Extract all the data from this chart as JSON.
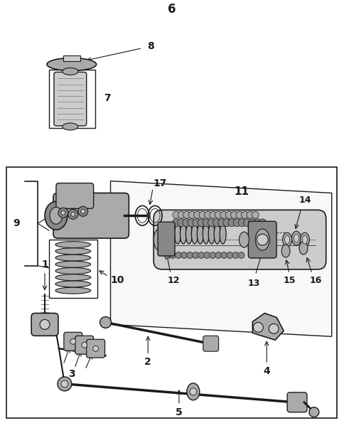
{
  "bg_color": "#ffffff",
  "line_color": "#1a1a1a",
  "gray1": "#888888",
  "gray2": "#aaaaaa",
  "gray3": "#cccccc",
  "gray4": "#dddddd",
  "fig_width": 4.85,
  "fig_height": 6.09,
  "dpi": 100
}
